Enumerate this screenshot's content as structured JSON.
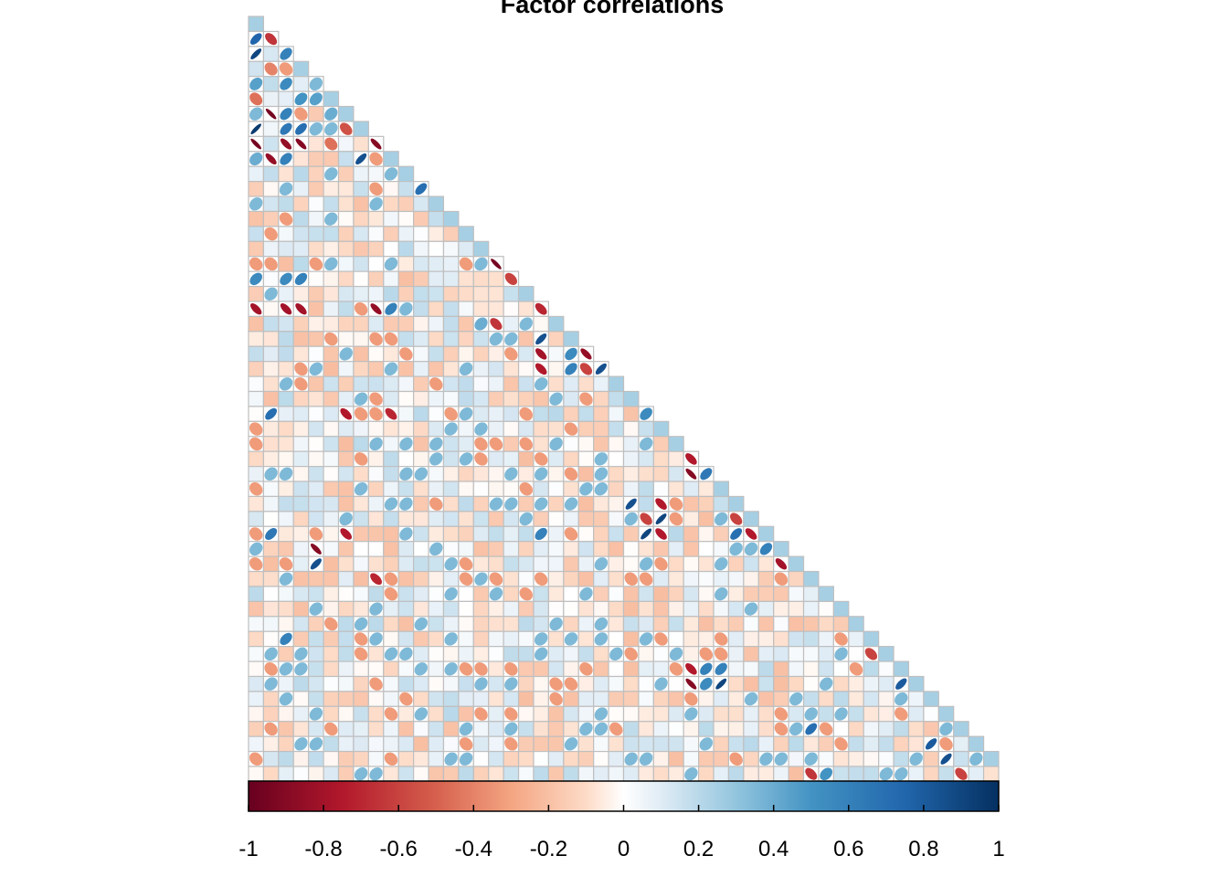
{
  "chart_data": {
    "type": "heatmap",
    "subtype": "lower-triangular correlation matrix (ellipse glyphs)",
    "title": "Factor correlations",
    "n_variables": 50,
    "value_range": [
      -1,
      1
    ],
    "colorbar": {
      "orientation": "horizontal",
      "placement": "bottom",
      "ticks": [
        -1,
        -0.8,
        -0.6,
        -0.4,
        -0.2,
        0,
        0.2,
        0.4,
        0.6,
        0.8,
        1
      ],
      "tick_labels": [
        "-1",
        "-0.8",
        "-0.6",
        "-0.4",
        "-0.2",
        "0",
        "0.2",
        "0.4",
        "0.6",
        "0.8",
        "1"
      ],
      "palette": "RdBu",
      "colors": {
        "-1": "#67001f",
        "-0.75": "#b2182b",
        "-0.5": "#d6604d",
        "-0.3": "#f4a582",
        "-0.1": "#fddbc7",
        "0": "#ffffff",
        "0.1": "#e0ecf5",
        "0.3": "#92c5de",
        "0.5": "#4393c3",
        "0.75": "#2166ac",
        "1": "#053061"
      }
    },
    "grid_color": "#bfbfbf",
    "strong_correlations": [
      {
        "row": 2,
        "col": 1,
        "value": 0.75
      },
      {
        "row": 2,
        "col": 2,
        "value": -0.65
      },
      {
        "row": 3,
        "col": 1,
        "value": 0.9
      },
      {
        "row": 3,
        "col": 3,
        "value": 0.6
      },
      {
        "row": 4,
        "col": 2,
        "value": -0.4
      },
      {
        "row": 5,
        "col": 1,
        "value": 0.45
      },
      {
        "row": 5,
        "col": 3,
        "value": 0.55
      },
      {
        "row": 5,
        "col": 5,
        "value": 0.35
      },
      {
        "row": 6,
        "col": 1,
        "value": -0.45
      },
      {
        "row": 6,
        "col": 4,
        "value": 0.5
      },
      {
        "row": 6,
        "col": 5,
        "value": 0.45
      },
      {
        "row": 7,
        "col": 2,
        "value": -0.95
      },
      {
        "row": 7,
        "col": 3,
        "value": 0.6
      },
      {
        "row": 7,
        "col": 6,
        "value": 0.4
      },
      {
        "row": 8,
        "col": 1,
        "value": 0.95
      },
      {
        "row": 8,
        "col": 3,
        "value": 0.65
      },
      {
        "row": 8,
        "col": 4,
        "value": 0.7
      },
      {
        "row": 8,
        "col": 7,
        "value": -0.55
      },
      {
        "row": 9,
        "col": 1,
        "value": -0.95
      },
      {
        "row": 9,
        "col": 3,
        "value": -0.85
      },
      {
        "row": 9,
        "col": 4,
        "value": -0.9
      },
      {
        "row": 9,
        "col": 6,
        "value": -0.45
      },
      {
        "row": 9,
        "col": 9,
        "value": -0.9
      },
      {
        "row": 10,
        "col": 1,
        "value": 0.4
      },
      {
        "row": 10,
        "col": 2,
        "value": -0.85
      },
      {
        "row": 10,
        "col": 3,
        "value": 0.6
      },
      {
        "row": 10,
        "col": 8,
        "value": 0.85
      },
      {
        "row": 12,
        "col": 12,
        "value": 0.7
      },
      {
        "row": 17,
        "col": 17,
        "value": -0.95
      },
      {
        "row": 18,
        "col": 18,
        "value": -0.6
      },
      {
        "row": 18,
        "col": 1,
        "value": 0.55
      },
      {
        "row": 18,
        "col": 3,
        "value": 0.55
      },
      {
        "row": 18,
        "col": 4,
        "value": 0.6
      },
      {
        "row": 20,
        "col": 1,
        "value": -0.8
      },
      {
        "row": 20,
        "col": 3,
        "value": -0.8
      },
      {
        "row": 20,
        "col": 4,
        "value": -0.8
      },
      {
        "row": 20,
        "col": 9,
        "value": -0.85
      },
      {
        "row": 20,
        "col": 10,
        "value": 0.6
      },
      {
        "row": 20,
        "col": 20,
        "value": -0.7
      },
      {
        "row": 20,
        "col": 21,
        "value": -0.6
      },
      {
        "row": 21,
        "col": 16,
        "value": 0.4
      },
      {
        "row": 21,
        "col": 17,
        "value": -0.65
      },
      {
        "row": 22,
        "col": 20,
        "value": 0.85
      },
      {
        "row": 23,
        "col": 20,
        "value": -0.8
      },
      {
        "row": 23,
        "col": 22,
        "value": 0.55
      },
      {
        "row": 23,
        "col": 23,
        "value": -0.85
      },
      {
        "row": 24,
        "col": 20,
        "value": -0.75
      },
      {
        "row": 24,
        "col": 22,
        "value": 0.6
      },
      {
        "row": 24,
        "col": 23,
        "value": -0.6
      },
      {
        "row": 24,
        "col": 24,
        "value": 0.85
      },
      {
        "row": 27,
        "col": 2,
        "value": 0.7
      },
      {
        "row": 27,
        "col": 7,
        "value": -0.75
      },
      {
        "row": 27,
        "col": 10,
        "value": -0.7
      },
      {
        "row": 27,
        "col": 27,
        "value": 0.55
      },
      {
        "row": 30,
        "col": 30,
        "value": -0.75
      },
      {
        "row": 31,
        "col": 30,
        "value": -0.9
      },
      {
        "row": 31,
        "col": 31,
        "value": 0.65
      },
      {
        "row": 33,
        "col": 26,
        "value": 0.85
      },
      {
        "row": 33,
        "col": 28,
        "value": -0.75
      },
      {
        "row": 34,
        "col": 27,
        "value": -0.6
      },
      {
        "row": 34,
        "col": 28,
        "value": 0.9
      },
      {
        "row": 34,
        "col": 33,
        "value": -0.6
      },
      {
        "row": 35,
        "col": 2,
        "value": 0.65
      },
      {
        "row": 35,
        "col": 7,
        "value": -0.75
      },
      {
        "row": 35,
        "col": 20,
        "value": 0.6
      },
      {
        "row": 35,
        "col": 27,
        "value": 0.9
      },
      {
        "row": 35,
        "col": 28,
        "value": -0.75
      },
      {
        "row": 35,
        "col": 33,
        "value": 0.7
      },
      {
        "row": 35,
        "col": 34,
        "value": -0.75
      },
      {
        "row": 36,
        "col": 5,
        "value": -0.9
      },
      {
        "row": 36,
        "col": 35,
        "value": 0.6
      },
      {
        "row": 37,
        "col": 5,
        "value": 0.85
      },
      {
        "row": 37,
        "col": 36,
        "value": -0.8
      },
      {
        "row": 38,
        "col": 9,
        "value": -0.7
      },
      {
        "row": 42,
        "col": 3,
        "value": 0.6
      },
      {
        "row": 43,
        "col": 42,
        "value": -0.6
      },
      {
        "row": 44,
        "col": 30,
        "value": -0.75
      },
      {
        "row": 44,
        "col": 31,
        "value": 0.6
      },
      {
        "row": 44,
        "col": 32,
        "value": 0.6
      },
      {
        "row": 45,
        "col": 30,
        "value": -0.9
      },
      {
        "row": 45,
        "col": 31,
        "value": 0.55
      },
      {
        "row": 45,
        "col": 32,
        "value": 0.9
      },
      {
        "row": 45,
        "col": 44,
        "value": 0.8
      },
      {
        "row": 48,
        "col": 38,
        "value": 0.7
      },
      {
        "row": 49,
        "col": 46,
        "value": 0.8
      },
      {
        "row": 50,
        "col": 47,
        "value": 0.85
      },
      {
        "row": 51,
        "col": 38,
        "value": -0.65
      },
      {
        "row": 51,
        "col": 39,
        "value": 0.5
      },
      {
        "row": 51,
        "col": 48,
        "value": -0.6
      }
    ]
  }
}
